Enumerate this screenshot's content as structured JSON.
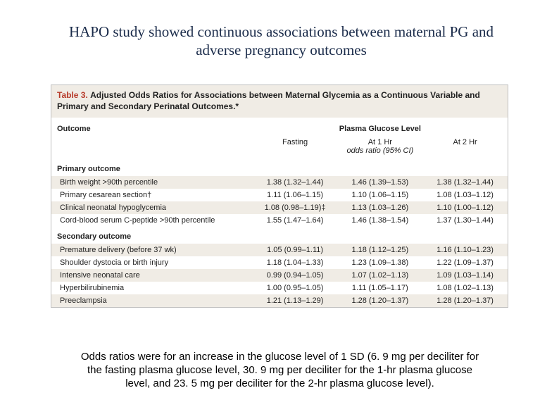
{
  "title": "HAPO study showed continuous associations between maternal PG and adverse pregnancy outcomes",
  "table": {
    "label_prefix": "Table 3.",
    "label_title": "Adjusted Odds Ratios for Associations between Maternal Glycemia as a Continuous Variable and Primary and Secondary Perinatal Outcomes.*",
    "outcome_header": "Outcome",
    "super_header": "Plasma Glucose Level",
    "col_labels": [
      "Fasting",
      "At 1 Hr",
      "At 2 Hr"
    ],
    "sub_header": "odds ratio (95% CI)",
    "primary_label": "Primary outcome",
    "secondary_label": "Secondary outcome",
    "primary_rows": [
      {
        "name": "Birth weight >90th percentile",
        "values": [
          "1.38 (1.32–1.44)",
          "1.46 (1.39–1.53)",
          "1.38 (1.32–1.44)"
        ]
      },
      {
        "name": "Primary cesarean section†",
        "values": [
          "1.11 (1.06–1.15)",
          "1.10 (1.06–1.15)",
          "1.08 (1.03–1.12)"
        ]
      },
      {
        "name": "Clinical neonatal hypoglycemia",
        "values": [
          "1.08 (0.98–1.19)‡",
          "1.13 (1.03–1.26)",
          "1.10 (1.00–1.12)"
        ]
      },
      {
        "name": "Cord-blood serum C-peptide >90th percentile",
        "values": [
          "1.55 (1.47–1.64)",
          "1.46 (1.38–1.54)",
          "1.37 (1.30–1.44)"
        ]
      }
    ],
    "secondary_rows": [
      {
        "name": "Premature delivery (before 37 wk)",
        "values": [
          "1.05 (0.99–1.11)",
          "1.18 (1.12–1.25)",
          "1.16 (1.10–1.23)"
        ]
      },
      {
        "name": "Shoulder dystocia or birth injury",
        "values": [
          "1.18 (1.04–1.33)",
          "1.23 (1.09–1.38)",
          "1.22 (1.09–1.37)"
        ]
      },
      {
        "name": "Intensive neonatal care",
        "values": [
          "0.99 (0.94–1.05)",
          "1.07 (1.02–1.13)",
          "1.09 (1.03–1.14)"
        ]
      },
      {
        "name": "Hyperbilirubinemia",
        "values": [
          "1.00 (0.95–1.05)",
          "1.11 (1.05–1.17)",
          "1.08 (1.02–1.13)"
        ]
      },
      {
        "name": "Preeclampsia",
        "values": [
          "1.21 (1.13–1.29)",
          "1.28 (1.20–1.37)",
          "1.28 (1.20–1.37)"
        ]
      }
    ]
  },
  "caption": "Odds ratios were for an increase in the glucose level of 1 SD (6. 9 mg per deciliter for the fasting plasma glucose level, 30. 9 mg per deciliter for the 1-hr plasma glucose level, and 23. 5 mg per deciliter for the 2-hr plasma glucose level)."
}
